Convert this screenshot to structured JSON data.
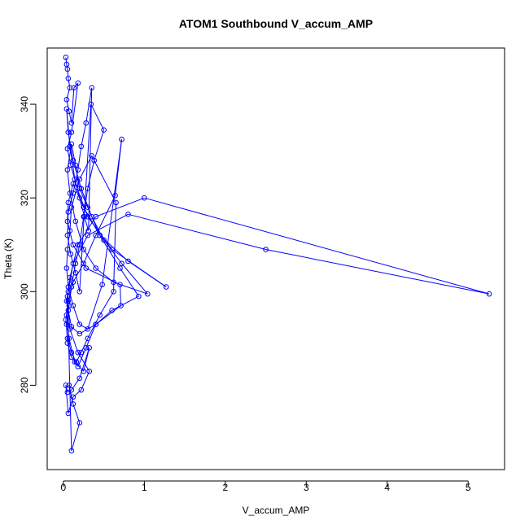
{
  "chart_data": {
    "type": "line",
    "title": "ATOM1 Southbound V_accum_AMP",
    "xlabel": "V_accum_AMP",
    "ylabel": "Theta (K)",
    "xlim": [
      -0.2,
      5.45
    ],
    "ylim": [
      262,
      352
    ],
    "x_ticks": [
      0,
      1,
      2,
      3,
      4,
      5
    ],
    "y_ticks": [
      280,
      300,
      320,
      340
    ],
    "grid": false,
    "colors": {
      "series": "#0000ff",
      "axis": "#000000",
      "background": "#ffffff"
    },
    "series": [
      {
        "marker": "open-circle",
        "x": [
          0.03,
          0.04,
          0.05,
          0.06,
          0.08,
          0.04,
          0.07,
          0.1,
          0.13,
          0.18,
          0.1,
          0.05,
          0.09,
          0.14,
          0.2,
          0.26,
          0.31,
          0.35,
          0.28,
          0.22,
          0.18,
          0.12,
          0.06,
          0.05,
          0.09,
          0.15,
          0.2,
          0.34,
          0.5,
          0.38,
          0.3,
          0.25,
          0.2,
          0.15,
          0.1,
          0.07,
          0.04,
          0.05,
          0.1,
          0.16,
          0.22,
          0.3,
          0.45,
          0.62,
          0.65,
          0.35,
          0.2,
          0.1,
          0.08,
          0.05,
          0.04,
          0.06,
          0.12,
          0.2,
          0.3,
          0.48,
          0.72,
          0.64,
          0.4,
          0.25,
          0.12,
          0.06,
          0.03,
          0.05,
          0.1,
          0.18,
          0.28,
          0.4,
          0.6,
          0.93,
          0.7,
          0.45,
          0.3,
          0.2,
          0.15,
          0.1,
          0.05,
          0.08,
          0.15,
          0.25,
          0.4,
          0.62,
          1.04,
          0.72,
          0.5,
          0.35,
          0.22,
          0.12,
          0.06,
          0.04,
          0.08,
          0.15,
          0.3,
          0.6,
          1.27,
          0.8,
          0.45,
          0.25,
          0.12,
          0.06,
          0.05,
          0.12,
          0.28,
          0.7,
          0.71,
          0.4,
          0.2,
          0.1,
          0.06,
          0.04,
          0.08,
          0.18,
          0.4,
          1.0,
          5.26,
          2.5,
          0.8,
          0.3,
          0.12,
          0.06,
          0.04,
          0.07,
          0.14,
          0.25,
          0.32,
          0.2,
          0.1,
          0.05,
          0.03,
          0.06,
          0.12,
          0.22,
          0.32,
          0.18,
          0.08,
          0.05,
          0.1,
          0.2,
          0.12,
          0.07
        ],
        "y": [
          350.0,
          348.5,
          347.5,
          345.5,
          343.5,
          341.0,
          338.5,
          336.0,
          343.5,
          344.5,
          334.0,
          330.5,
          327.0,
          324.0,
          320.0,
          316.0,
          313.0,
          343.5,
          336.0,
          331.0,
          326.0,
          321.0,
          317.0,
          312.0,
          308.0,
          304.0,
          300.0,
          340.0,
          334.5,
          328.0,
          322.0,
          316.0,
          310.0,
          306.0,
          301.0,
          297.0,
          293.0,
          289.0,
          286.0,
          285.0,
          287.0,
          290.0,
          295.0,
          300.0,
          319.0,
          329.0,
          324.0,
          318.0,
          313.0,
          309.0,
          305.0,
          301.0,
          297.0,
          293.0,
          292.0,
          301.5,
          332.5,
          320.5,
          312.0,
          306.0,
          302.0,
          298.0,
          294.0,
          290.0,
          287.0,
          284.0,
          288.0,
          293.0,
          296.0,
          299.0,
          305.0,
          312.0,
          318.0,
          322.0,
          327.0,
          331.5,
          326.0,
          321.0,
          315.0,
          309.0,
          305.0,
          302.0,
          299.5,
          306.0,
          311.0,
          316.0,
          322.0,
          328.0,
          334.0,
          339.0,
          331.0,
          323.0,
          316.0,
          309.0,
          301.0,
          306.5,
          312.0,
          318.0,
          323.0,
          319.0,
          315.0,
          310.0,
          305.0,
          301.5,
          297.0,
          293.0,
          291.0,
          292.5,
          296.0,
          298.0,
          303.0,
          310.0,
          316.0,
          320.0,
          299.5,
          309.0,
          316.5,
          312.0,
          306.0,
          300.0,
          295.0,
          290.0,
          285.0,
          283.0,
          288.0,
          281.5,
          279.0,
          278.5,
          280.0,
          274.0,
          277.5,
          279.0,
          283.0,
          287.0,
          292.0,
          299.0,
          266.0,
          272.0,
          276.0,
          280.0
        ]
      }
    ]
  }
}
